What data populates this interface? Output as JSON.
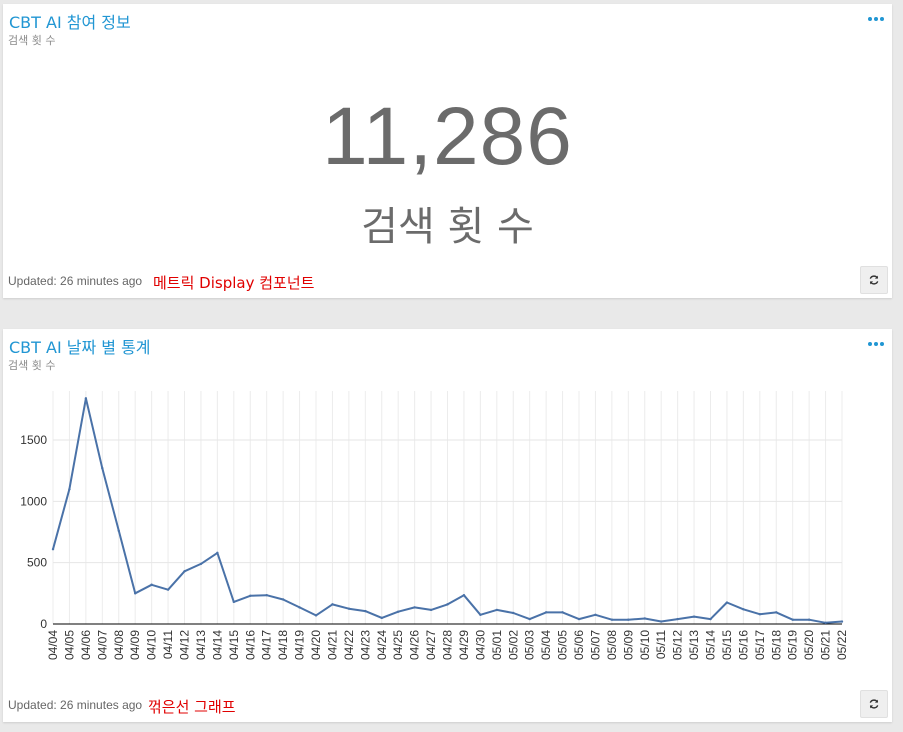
{
  "metric_card": {
    "title": "CBT AI 참여 정보",
    "subtitle": "검색 횟 수",
    "value": "11,286",
    "value_label": "검색 횟 수",
    "updated": "Updated: 26 minutes ago",
    "note": "메트릭 Display 컴포넌트"
  },
  "chart_card": {
    "title": "CBT AI 날짜 별 통계",
    "subtitle": "검색 횟 수",
    "updated": "Updated: 26 minutes ago",
    "note": "꺾은선 그래프"
  },
  "colors": {
    "accent": "#2196d3",
    "line": "#4a72a8",
    "note": "#e00000"
  },
  "chart_data": {
    "type": "line",
    "x": [
      "04/04",
      "04/05",
      "04/06",
      "04/07",
      "04/08",
      "04/09",
      "04/10",
      "04/11",
      "04/12",
      "04/13",
      "04/14",
      "04/15",
      "04/16",
      "04/17",
      "04/18",
      "04/19",
      "04/20",
      "04/21",
      "04/22",
      "04/23",
      "04/24",
      "04/25",
      "04/26",
      "04/27",
      "04/28",
      "04/29",
      "04/30",
      "05/01",
      "05/02",
      "05/03",
      "05/04",
      "05/05",
      "05/06",
      "05/07",
      "05/08",
      "05/09",
      "05/10",
      "05/11",
      "05/12",
      "05/13",
      "05/14",
      "05/15",
      "05/16",
      "05/17",
      "05/18",
      "05/19",
      "05/20",
      "05/21",
      "05/22"
    ],
    "values": [
      610,
      1100,
      1840,
      1270,
      760,
      250,
      320,
      280,
      430,
      490,
      580,
      180,
      230,
      235,
      200,
      135,
      70,
      160,
      125,
      105,
      50,
      100,
      135,
      115,
      160,
      235,
      75,
      115,
      90,
      40,
      95,
      95,
      40,
      75,
      35,
      35,
      45,
      20,
      40,
      60,
      40,
      175,
      120,
      80,
      95,
      35,
      35,
      10,
      20
    ],
    "yticks": [
      0,
      500,
      1000,
      1500
    ],
    "ylim": [
      0,
      1900
    ],
    "grid": true
  }
}
